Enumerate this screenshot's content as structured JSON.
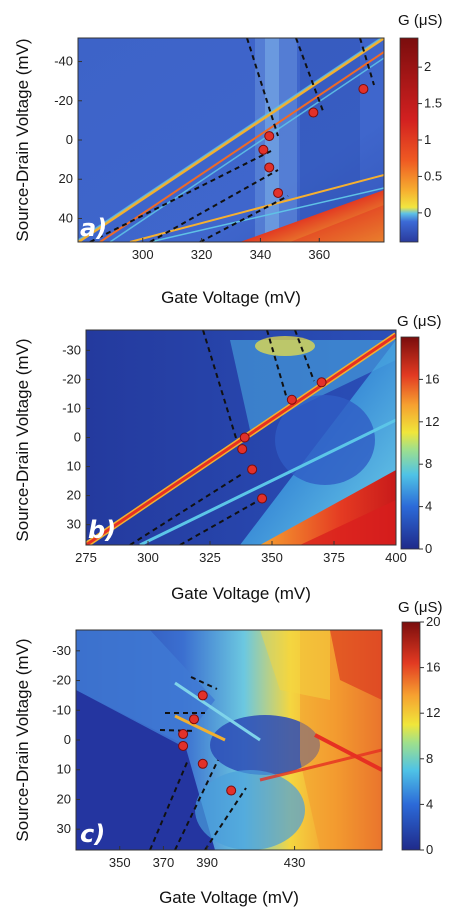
{
  "chart_data": [
    {
      "type": "heatmap",
      "panel_label": "a)",
      "xlabel": "Gate Voltage (mV)",
      "ylabel": "Source-Drain Voltage (mV)",
      "colorbar_title": "G (μS)",
      "xticks": [
        "300",
        "320",
        "340",
        "360"
      ],
      "yticks": [
        "-40",
        "-20",
        "0",
        "20",
        "40"
      ],
      "cbar_ticks": [
        "2",
        "1.5",
        "1",
        "0.5",
        "0"
      ],
      "xlim": [
        278,
        382
      ],
      "ylim": [
        -52,
        52
      ],
      "clim": [
        -0.4,
        2.4
      ],
      "points": [
        {
          "x": 343,
          "y": -2
        },
        {
          "x": 341,
          "y": 5
        },
        {
          "x": 343,
          "y": 14
        },
        {
          "x": 346,
          "y": 27
        },
        {
          "x": 358,
          "y": -14
        },
        {
          "x": 375,
          "y": -26
        }
      ]
    },
    {
      "type": "heatmap",
      "panel_label": "b)",
      "xlabel": "Gate Voltage (mV)",
      "ylabel": "Source-Drain Voltage (mV)",
      "colorbar_title": "G (μS)",
      "xticks": [
        "275",
        "300",
        "325",
        "350",
        "375",
        "400"
      ],
      "yticks": [
        "-30",
        "-20",
        "-10",
        "0",
        "10",
        "20",
        "30"
      ],
      "cbar_ticks": [
        "16",
        "12",
        "8",
        "4",
        "0"
      ],
      "xlim": [
        275,
        400
      ],
      "ylim": [
        -37,
        37
      ],
      "clim": [
        0,
        20
      ],
      "points": [
        {
          "x": 339,
          "y": 0
        },
        {
          "x": 338,
          "y": 4
        },
        {
          "x": 342,
          "y": 11
        },
        {
          "x": 346,
          "y": 21
        },
        {
          "x": 358,
          "y": -13
        },
        {
          "x": 370,
          "y": -19
        }
      ]
    },
    {
      "type": "heatmap",
      "panel_label": "c)",
      "xlabel": "Gate Voltage (mV)",
      "ylabel": "Source-Drain Voltage (mV)",
      "colorbar_title": "G (μS)",
      "xticks": [
        "350",
        "370",
        "390",
        "430"
      ],
      "yticks": [
        "-30",
        "-20",
        "-10",
        "0",
        "10",
        "20",
        "30"
      ],
      "cbar_ticks": [
        "20",
        "16",
        "12",
        "8",
        "4",
        "0"
      ],
      "xlim": [
        330,
        470
      ],
      "ylim": [
        -37,
        37
      ],
      "clim": [
        0,
        20
      ],
      "points": [
        {
          "x": 388,
          "y": -15
        },
        {
          "x": 384,
          "y": -7
        },
        {
          "x": 379,
          "y": -2
        },
        {
          "x": 379,
          "y": 2
        },
        {
          "x": 388,
          "y": 8
        },
        {
          "x": 401,
          "y": 17
        }
      ]
    }
  ]
}
